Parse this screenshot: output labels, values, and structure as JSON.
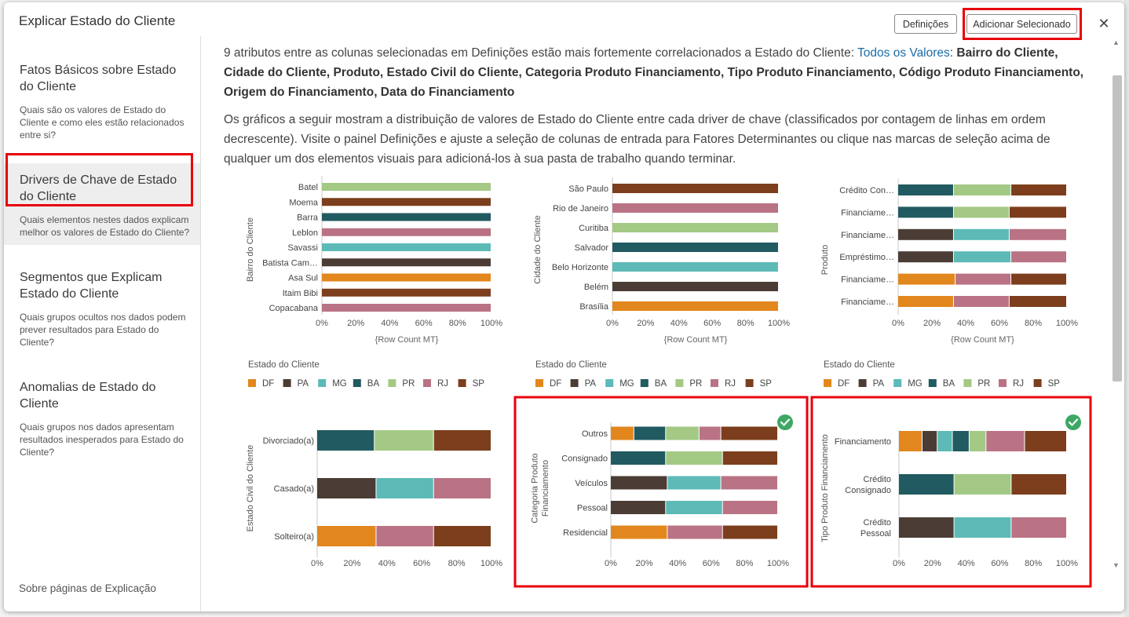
{
  "dialog": {
    "title": "Explicar Estado do Cliente",
    "settings_button": "Definições",
    "add_button": "Adicionar Selecionado",
    "close_icon": "close-icon"
  },
  "sidebar": {
    "items": [
      {
        "title": "Fatos Básicos sobre Estado do Cliente",
        "desc": "Quais são os valores de Estado do Cliente e como eles estão relacionados entre si?"
      },
      {
        "title": "Drivers de Chave de Estado do Cliente",
        "desc": "Quais elementos nestes dados explicam melhor os valores de Estado do Cliente?"
      },
      {
        "title": "Segmentos que Explicam Estado do Cliente",
        "desc": "Quais grupos ocultos nos dados podem prever resultados para Estado do Cliente?"
      },
      {
        "title": "Anomalias de Estado do Cliente",
        "desc": "Quais grupos nos dados apresentam resultados inesperados para Estado do Cliente?"
      }
    ],
    "footer": "Sobre páginas de Explicação"
  },
  "content": {
    "p1_prefix": "9 atributos entre as colunas selecionadas em Definições estão mais fortemente correlacionados a Estado do Cliente: ",
    "p1_link": "Todos os Valores",
    "p1_colon": ": ",
    "p1_bold": "Bairro do Cliente, Cidade do Cliente, Produto, Estado Civil do Cliente, Categoria Produto Financiamento, Tipo Produto Financiamento, Código Produto Financiamento, Origem do Financiamento, Data do Financiamento",
    "p2": "Os gráficos a seguir mostram a distribuição de valores de Estado do Cliente entre cada driver de chave (classificados por contagem de linhas em ordem decrescente). Visite o painel Definições e ajuste a seleção de colunas de entrada para Fatores Determinantes ou clique nas marcas de seleção acima de qualquer um dos elementos visuais para adicioná-los à sua pasta de trabalho quando terminar."
  },
  "legend": {
    "title": "Estado do Cliente",
    "keys": [
      "DF",
      "PA",
      "MG",
      "BA",
      "PR",
      "RJ",
      "SP"
    ],
    "colors": {
      "DF": "#e2871d",
      "PA": "#4b3d35",
      "MG": "#5dbab6",
      "BA": "#215a60",
      "PR": "#a3c985",
      "RJ": "#b97384",
      "SP": "#7c3e1c"
    }
  },
  "chart_data": [
    {
      "type": "bar",
      "orientation": "horizontal",
      "ylabel": "Bairro do Cliente",
      "xlabel": "{Row Count MT}",
      "xticks": [
        "0%",
        "20%",
        "40%",
        "60%",
        "80%",
        "100%"
      ],
      "categories": [
        "Batel",
        "Moema",
        "Barra",
        "Leblon",
        "Savassi",
        "Batista Cam…",
        "Asa Sul",
        "Itaim Bibi",
        "Copacabana"
      ],
      "stacks": [
        [
          [
            "PR",
            100
          ]
        ],
        [
          [
            "SP",
            100
          ]
        ],
        [
          [
            "BA",
            100
          ]
        ],
        [
          [
            "RJ",
            100
          ]
        ],
        [
          [
            "MG",
            100
          ]
        ],
        [
          [
            "PA",
            100
          ]
        ],
        [
          [
            "DF",
            100
          ]
        ],
        [
          [
            "SP",
            100
          ]
        ],
        [
          [
            "RJ",
            100
          ]
        ]
      ]
    },
    {
      "type": "bar",
      "orientation": "horizontal",
      "ylabel": "Cidade do Cliente",
      "xlabel": "{Row Count MT}",
      "xticks": [
        "0%",
        "20%",
        "40%",
        "60%",
        "80%",
        "100%"
      ],
      "categories": [
        "São Paulo",
        "Rio de Janeiro",
        "Curitiba",
        "Salvador",
        "Belo Horizonte",
        "Belém",
        "Brasília"
      ],
      "stacks": [
        [
          [
            "SP",
            100
          ]
        ],
        [
          [
            "RJ",
            100
          ]
        ],
        [
          [
            "PR",
            100
          ]
        ],
        [
          [
            "BA",
            100
          ]
        ],
        [
          [
            "MG",
            100
          ]
        ],
        [
          [
            "PA",
            100
          ]
        ],
        [
          [
            "DF",
            100
          ]
        ]
      ]
    },
    {
      "type": "bar",
      "orientation": "horizontal",
      "stacked": true,
      "ylabel": "Produto",
      "xlabel": "{Row Count MT}",
      "xticks": [
        "0%",
        "20%",
        "40%",
        "60%",
        "80%",
        "100%"
      ],
      "categories": [
        "Crédito Con…",
        "Financiame…",
        "Financiame…",
        "Empréstimo…",
        "Financiame…",
        "Financiame…"
      ],
      "stacks": [
        [
          [
            "BA",
            33
          ],
          [
            "PR",
            34
          ],
          [
            "SP",
            33
          ]
        ],
        [
          [
            "BA",
            33
          ],
          [
            "PR",
            33
          ],
          [
            "SP",
            34
          ]
        ],
        [
          [
            "PA",
            33
          ],
          [
            "MG",
            33
          ],
          [
            "RJ",
            34
          ]
        ],
        [
          [
            "PA",
            33
          ],
          [
            "MG",
            34
          ],
          [
            "RJ",
            33
          ]
        ],
        [
          [
            "DF",
            34
          ],
          [
            "RJ",
            33
          ],
          [
            "SP",
            33
          ]
        ],
        [
          [
            "DF",
            33
          ],
          [
            "RJ",
            33
          ],
          [
            "SP",
            34
          ]
        ]
      ]
    },
    {
      "type": "bar",
      "orientation": "horizontal",
      "stacked": true,
      "ylabel": "Estado Civil do Cliente",
      "xticks": [
        "0%",
        "20%",
        "40%",
        "60%",
        "80%",
        "100%"
      ],
      "categories": [
        "Divorciado(a)",
        "Casado(a)",
        "Solteiro(a)"
      ],
      "stacks": [
        [
          [
            "BA",
            33
          ],
          [
            "PR",
            34
          ],
          [
            "SP",
            33
          ]
        ],
        [
          [
            "PA",
            34
          ],
          [
            "MG",
            33
          ],
          [
            "RJ",
            33
          ]
        ],
        [
          [
            "DF",
            34
          ],
          [
            "RJ",
            33
          ],
          [
            "SP",
            33
          ]
        ]
      ]
    },
    {
      "type": "bar",
      "orientation": "horizontal",
      "stacked": true,
      "selected": true,
      "ylabel": "Categoria Produto Financiamento",
      "xticks": [
        "0%",
        "20%",
        "40%",
        "60%",
        "80%",
        "100%"
      ],
      "categories": [
        "Outros",
        "Consignado",
        "Veículos",
        "Pessoal",
        "Residencial"
      ],
      "stacks": [
        [
          [
            "DF",
            14
          ],
          [
            "BA",
            19
          ],
          [
            "PR",
            20
          ],
          [
            "RJ",
            13
          ],
          [
            "SP",
            34
          ]
        ],
        [
          [
            "BA",
            33
          ],
          [
            "PR",
            34
          ],
          [
            "SP",
            33
          ]
        ],
        [
          [
            "PA",
            34
          ],
          [
            "MG",
            32
          ],
          [
            "RJ",
            34
          ]
        ],
        [
          [
            "PA",
            33
          ],
          [
            "MG",
            34
          ],
          [
            "RJ",
            33
          ]
        ],
        [
          [
            "DF",
            34
          ],
          [
            "RJ",
            33
          ],
          [
            "SP",
            33
          ]
        ]
      ]
    },
    {
      "type": "bar",
      "orientation": "horizontal",
      "stacked": true,
      "selected": true,
      "ylabel": "Tipo Produto Financiamento",
      "xticks": [
        "0%",
        "20%",
        "40%",
        "60%",
        "80%",
        "100%"
      ],
      "categories": [
        "Financiamento",
        "Crédito\nConsignado",
        "Crédito\nPessoal"
      ],
      "stacks": [
        [
          [
            "DF",
            14
          ],
          [
            "PA",
            9
          ],
          [
            "MG",
            9
          ],
          [
            "BA",
            10
          ],
          [
            "PR",
            10
          ],
          [
            "RJ",
            23
          ],
          [
            "SP",
            25
          ]
        ],
        [
          [
            "BA",
            33
          ],
          [
            "PR",
            34
          ],
          [
            "SP",
            33
          ]
        ],
        [
          [
            "PA",
            33
          ],
          [
            "MG",
            34
          ],
          [
            "RJ",
            33
          ]
        ]
      ]
    }
  ]
}
